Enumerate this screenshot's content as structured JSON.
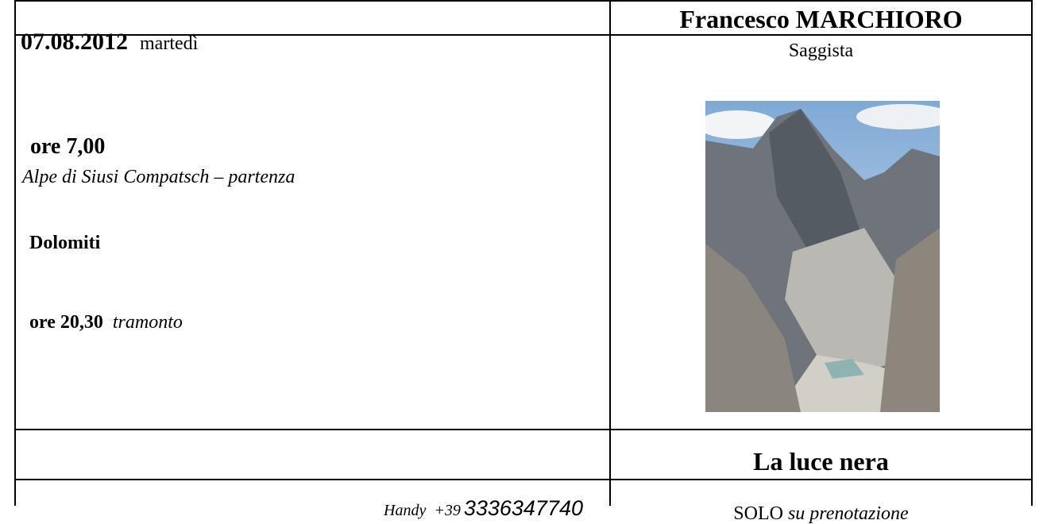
{
  "header": {
    "date": "07.08.2012",
    "weekday": "martedì",
    "author": "Francesco MARCHIORO"
  },
  "body": {
    "role": "Saggista",
    "time_start": "ore 7,00",
    "place": "Alpe di Siusi Compatsch – partenza",
    "region": "Dolomiti",
    "time_end": "ore 20,30",
    "end_note": "tramonto"
  },
  "book": {
    "title": "La luce nera"
  },
  "footer": {
    "phone_label": "Handy  +39",
    "phone_number": "3336347740",
    "booking": "SOLO",
    "booking_note": "su prenotazione"
  }
}
